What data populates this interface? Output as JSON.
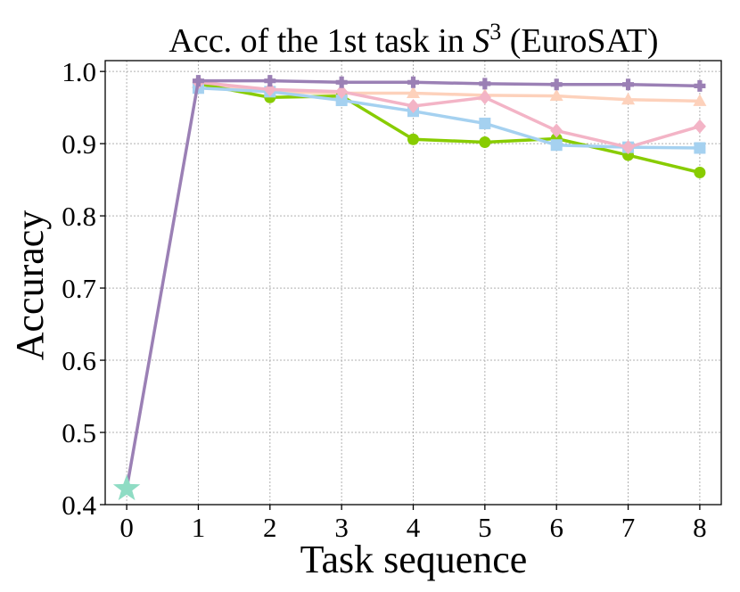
{
  "chart_data": {
    "type": "line",
    "title_main": "Acc. of the 1st task in ",
    "title_symbol": "S",
    "title_superscript": "3",
    "title_suffix": " (EuroSAT)",
    "xlabel": "Task sequence",
    "ylabel": "Accuracy",
    "xlim": [
      -0.3,
      8.3
    ],
    "ylim": [
      0.4,
      1.015
    ],
    "xticks": [
      0,
      1,
      2,
      3,
      4,
      5,
      6,
      7,
      8
    ],
    "yticks": [
      0.4,
      0.5,
      0.6,
      0.7,
      0.8,
      0.9,
      1.0
    ],
    "ytick_labels": [
      "0.4",
      "0.5",
      "0.6",
      "0.7",
      "0.8",
      "0.9",
      "1.0"
    ],
    "grid": true,
    "start_point": {
      "x": 0,
      "y": 0.422,
      "marker": "star",
      "color": "#8fdcc4"
    },
    "series": [
      {
        "x": [
          1,
          2,
          3,
          4,
          5,
          6,
          7,
          8
        ],
        "values": [
          0.984,
          0.972,
          0.97,
          0.97,
          0.967,
          0.966,
          0.961,
          0.959
        ],
        "color": "#fdd1bb",
        "marker": "triangle"
      },
      {
        "x": [
          1,
          2,
          3,
          4,
          5,
          6,
          7,
          8
        ],
        "values": [
          0.983,
          0.964,
          0.966,
          0.906,
          0.902,
          0.907,
          0.884,
          0.86
        ],
        "color": "#88cc00",
        "marker": "circle"
      },
      {
        "x": [
          1,
          2,
          3,
          4,
          5,
          6,
          7,
          8
        ],
        "values": [
          0.977,
          0.972,
          0.96,
          0.945,
          0.928,
          0.898,
          0.895,
          0.894
        ],
        "color": "#a5d1f0",
        "marker": "square"
      },
      {
        "x": [
          1,
          2,
          3,
          4,
          5,
          6,
          7,
          8
        ],
        "values": [
          0.985,
          0.975,
          0.972,
          0.952,
          0.964,
          0.918,
          0.895,
          0.924
        ],
        "color": "#f3b4c6",
        "marker": "diamond"
      },
      {
        "x": [
          0,
          1,
          2,
          3,
          4,
          5,
          6,
          7,
          8
        ],
        "values": [
          0.422,
          0.987,
          0.987,
          0.985,
          0.985,
          0.983,
          0.982,
          0.982,
          0.98
        ],
        "color": "#9b80b5",
        "marker": "plus"
      }
    ]
  }
}
